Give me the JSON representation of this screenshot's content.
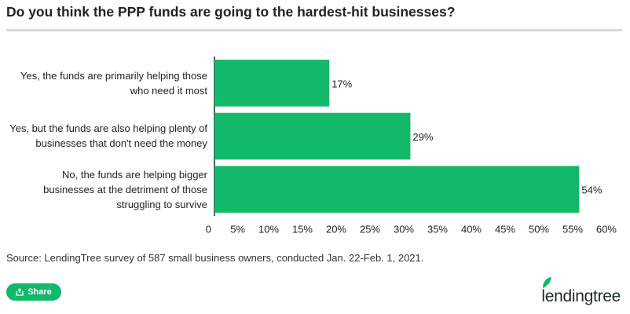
{
  "chart_data": {
    "type": "hbar",
    "title": "Do you think the PPP funds are going to the hardest-hit businesses?",
    "categories": [
      "Yes, the funds are primarily helping those who need it most",
      "Yes, but the funds are also helping plenty of businesses that don't need the money",
      "No, the funds are helping bigger businesses at the detriment of those struggling to survive"
    ],
    "values": [
      17,
      29,
      54
    ],
    "value_labels": [
      "17%",
      "29%",
      "54%"
    ],
    "color": "#12b96a",
    "xlim": [
      0,
      60
    ],
    "xticks": [
      0,
      {
        "value": 5,
        "label": "5%"
      },
      {
        "value": 10,
        "label": "10%"
      },
      {
        "value": 15,
        "label": "15%"
      },
      {
        "value": 20,
        "label": "20%"
      },
      {
        "value": 25,
        "label": "25%"
      },
      {
        "value": 30,
        "label": "30%"
      },
      {
        "value": 35,
        "label": "35%"
      },
      {
        "value": 40,
        "label": "40%"
      },
      {
        "value": 45,
        "label": "45%"
      },
      {
        "value": 50,
        "label": "50%"
      },
      {
        "value": 55,
        "label": "55%"
      },
      {
        "value": 60,
        "label": "60%"
      }
    ],
    "grid": false,
    "source": "Source: LendingTree survey of 587 small business owners, conducted Jan. 22-Feb. 1, 2021."
  },
  "share_label": "Share",
  "brand": "lendingtree"
}
